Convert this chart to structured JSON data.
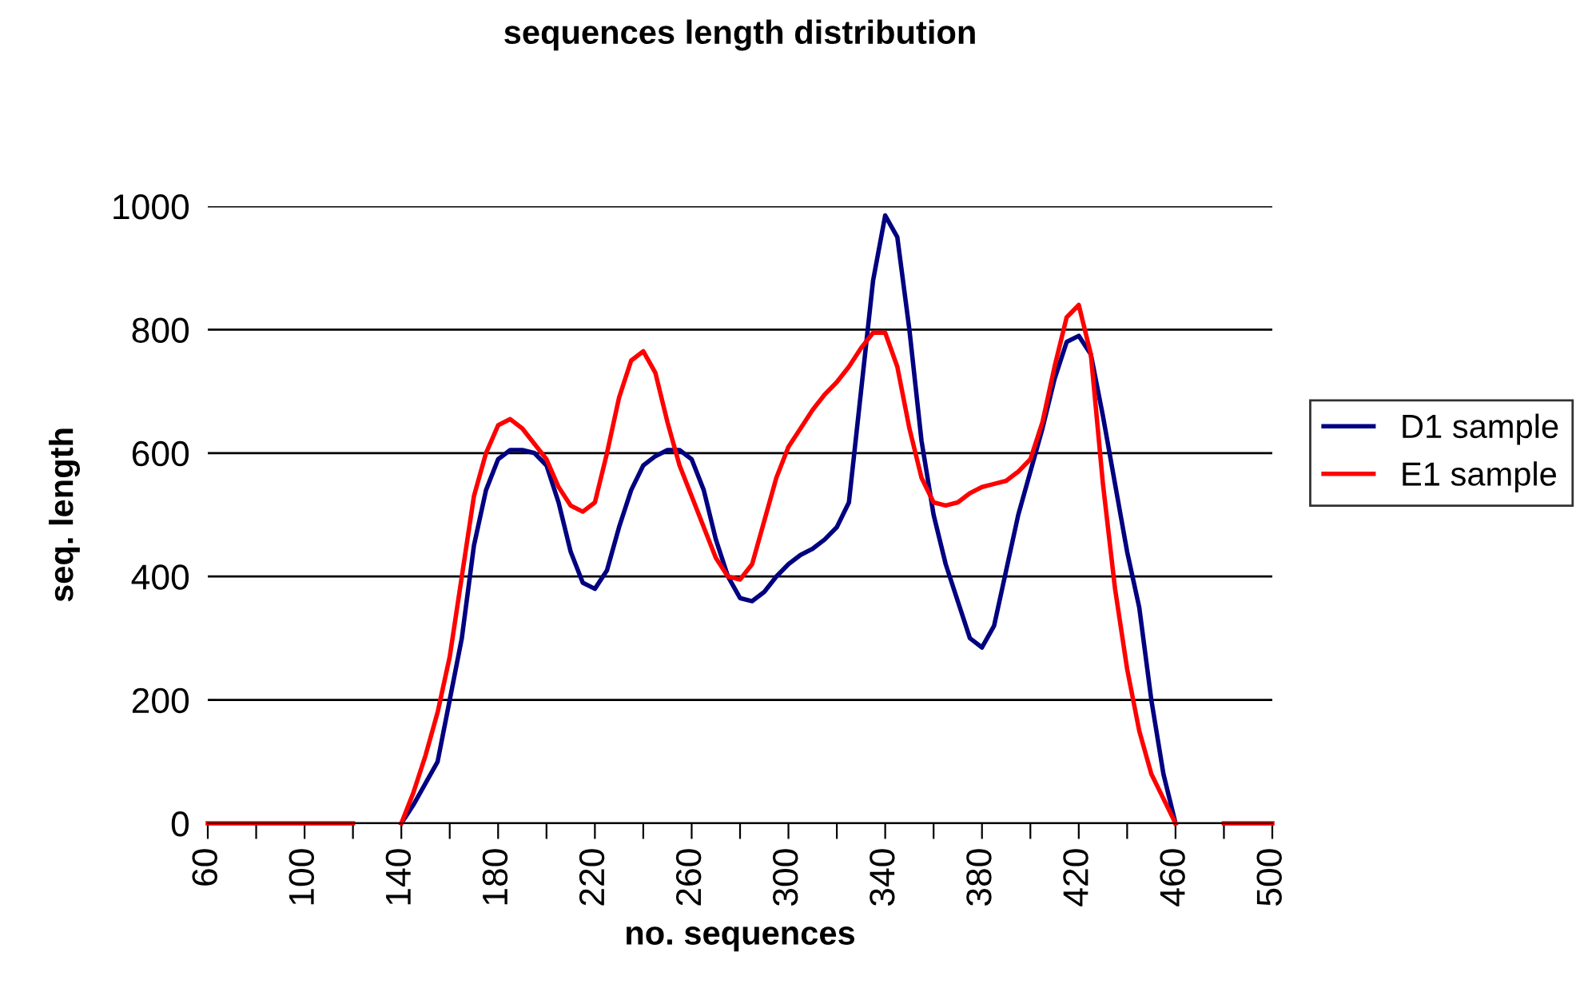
{
  "chart_data": {
    "type": "line",
    "title": "sequences length distribution",
    "xlabel": "no. sequences",
    "ylabel": "seq. length",
    "xlim": [
      60,
      500
    ],
    "ylim": [
      0,
      1000
    ],
    "xticks": [
      60,
      {
        "value": 80,
        "label": null
      },
      100,
      {
        "value": 120,
        "label": null
      },
      140,
      {
        "value": 160,
        "label": null
      },
      180,
      {
        "value": 200,
        "label": null
      },
      220,
      {
        "value": 240,
        "label": null
      },
      260,
      {
        "value": 280,
        "label": null
      },
      300,
      {
        "value": 320,
        "label": null
      },
      340,
      {
        "value": 360,
        "label": null
      },
      380,
      {
        "value": 400,
        "label": null
      },
      420,
      {
        "value": 440,
        "label": null
      },
      460,
      {
        "value": 480,
        "label": null
      },
      500
    ],
    "yticks": [
      0,
      200,
      400,
      600,
      800,
      1000
    ],
    "grid": "y",
    "legend": "right",
    "marker": "none",
    "line_style": "solid",
    "series": [
      {
        "name": "D1 sample",
        "color": "#000080",
        "x": [
          140,
          145,
          150,
          155,
          160,
          165,
          170,
          175,
          180,
          185,
          190,
          195,
          200,
          205,
          210,
          215,
          220,
          225,
          230,
          235,
          240,
          245,
          250,
          255,
          260,
          265,
          270,
          275,
          280,
          285,
          290,
          295,
          300,
          305,
          310,
          315,
          320,
          325,
          330,
          335,
          340,
          345,
          350,
          355,
          360,
          365,
          370,
          375,
          380,
          385,
          390,
          395,
          400,
          405,
          410,
          415,
          420,
          425,
          430,
          435,
          440,
          445,
          450,
          455,
          460
        ],
        "values": [
          0,
          30,
          65,
          100,
          200,
          300,
          450,
          540,
          590,
          605,
          605,
          600,
          580,
          520,
          440,
          390,
          380,
          410,
          480,
          540,
          580,
          595,
          605,
          605,
          590,
          540,
          460,
          400,
          365,
          360,
          375,
          400,
          420,
          435,
          445,
          460,
          480,
          520,
          700,
          880,
          985,
          950,
          800,
          620,
          500,
          420,
          360,
          300,
          285,
          320,
          410,
          500,
          570,
          640,
          720,
          780,
          790,
          760,
          660,
          550,
          440,
          350,
          200,
          80,
          0
        ]
      },
      {
        "name": "E1 sample",
        "color": "#ff0000",
        "x": [
          60,
          80,
          100,
          120,
          130,
          140,
          145,
          150,
          155,
          160,
          165,
          170,
          175,
          180,
          185,
          190,
          195,
          200,
          205,
          210,
          215,
          220,
          225,
          230,
          235,
          240,
          245,
          250,
          255,
          260,
          265,
          270,
          275,
          280,
          285,
          290,
          295,
          300,
          305,
          310,
          315,
          320,
          325,
          330,
          335,
          340,
          345,
          350,
          355,
          360,
          365,
          370,
          375,
          380,
          385,
          390,
          395,
          400,
          405,
          410,
          415,
          420,
          425,
          430,
          435,
          440,
          445,
          450,
          455,
          460,
          470,
          480,
          500
        ],
        "values": [
          0,
          0,
          0,
          0,
          null,
          0,
          50,
          110,
          180,
          270,
          400,
          530,
          600,
          645,
          655,
          640,
          615,
          590,
          545,
          515,
          505,
          520,
          600,
          690,
          750,
          765,
          730,
          650,
          580,
          530,
          480,
          430,
          400,
          395,
          420,
          490,
          560,
          610,
          640,
          670,
          695,
          715,
          740,
          770,
          795,
          795,
          740,
          640,
          560,
          520,
          515,
          520,
          535,
          545,
          550,
          555,
          570,
          590,
          650,
          740,
          820,
          840,
          760,
          550,
          380,
          250,
          150,
          80,
          40,
          0,
          null,
          0,
          0
        ]
      }
    ]
  }
}
